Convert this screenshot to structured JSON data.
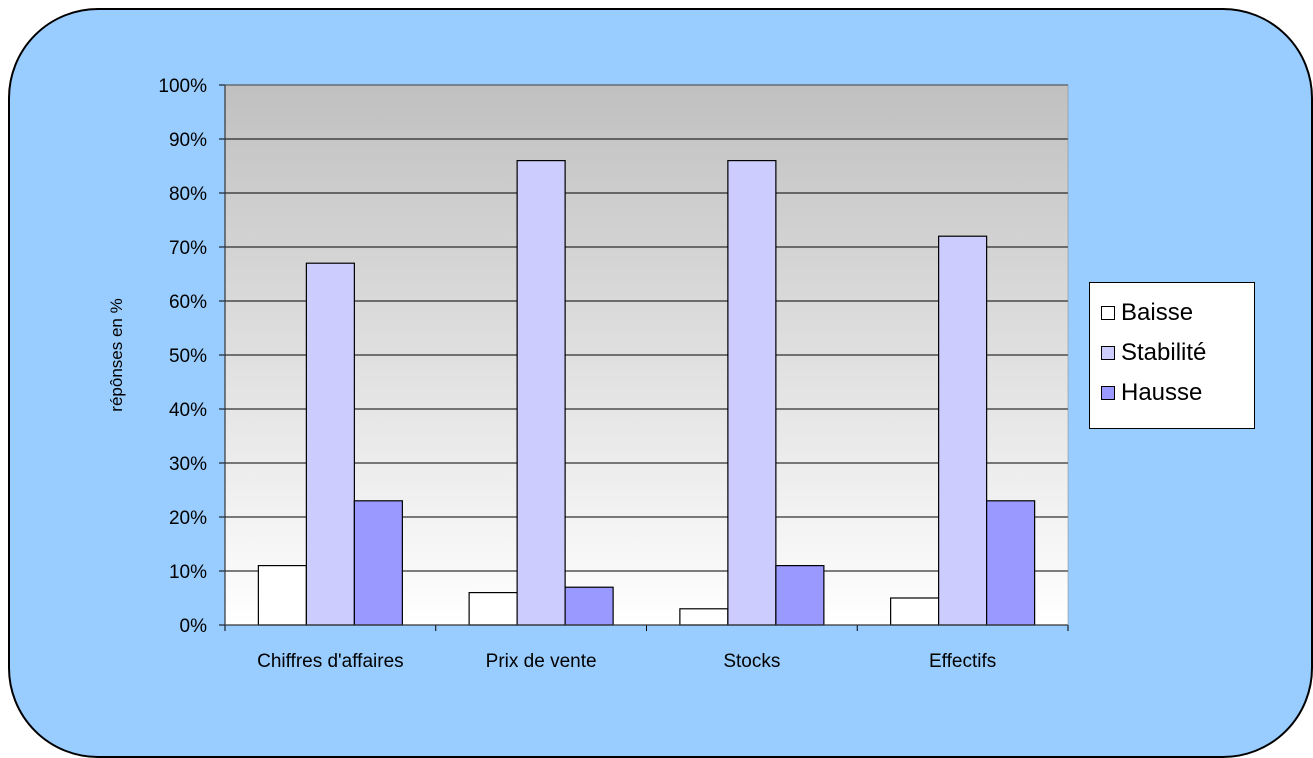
{
  "chart_data": {
    "type": "bar",
    "categories": [
      "Chiffres d'affaires",
      "Prix de vente",
      "Stocks",
      "Effectifs"
    ],
    "series": [
      {
        "name": "Baisse",
        "color": "#ffffff",
        "values": [
          11,
          6,
          3,
          5
        ]
      },
      {
        "name": "Stabilité",
        "color": "#ccccff",
        "values": [
          67,
          86,
          86,
          72
        ]
      },
      {
        "name": "Hausse",
        "color": "#9999ff",
        "values": [
          23,
          7,
          11,
          23
        ]
      }
    ],
    "ylabel": "répônses en %",
    "ylim": [
      0,
      100
    ],
    "yticks": [
      "0%",
      "10%",
      "20%",
      "30%",
      "40%",
      "50%",
      "60%",
      "70%",
      "80%",
      "90%",
      "100%"
    ],
    "grid": true,
    "legend_position": "right",
    "frame_color": "#99ccff",
    "plot_gradient": [
      "#c0c0c0",
      "#ffffff"
    ]
  }
}
